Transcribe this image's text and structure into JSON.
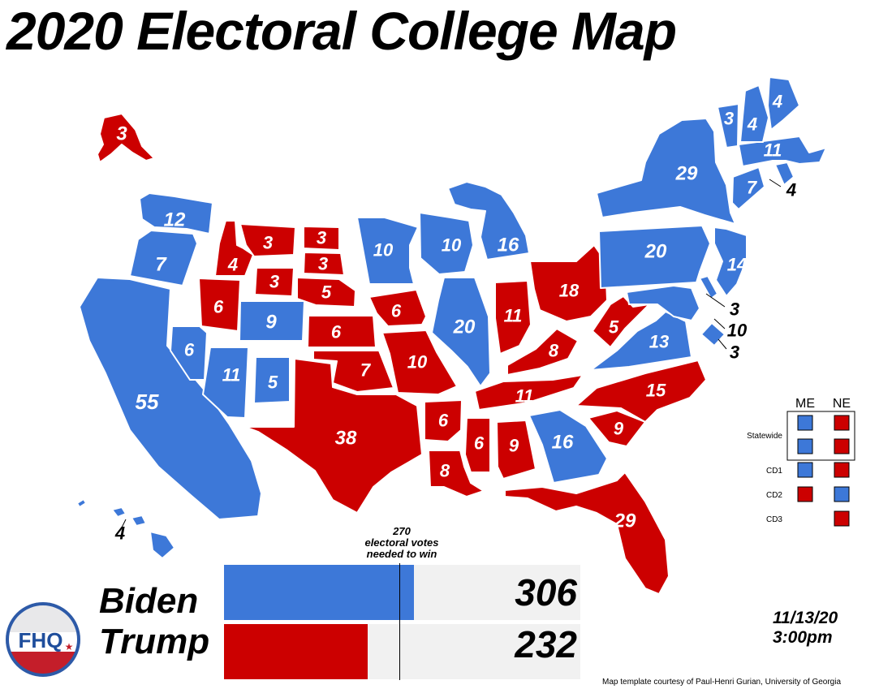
{
  "title": "2020 Electoral College Map",
  "colors": {
    "dem": "#3d78d8",
    "rep": "#cc0000"
  },
  "states": [
    {
      "id": "AK",
      "party": "rep",
      "ev": 3
    },
    {
      "id": "HI",
      "party": "dem",
      "ev": 4
    },
    {
      "id": "WA",
      "party": "dem",
      "ev": 12
    },
    {
      "id": "OR",
      "party": "dem",
      "ev": 7
    },
    {
      "id": "CA",
      "party": "dem",
      "ev": 55
    },
    {
      "id": "NV",
      "party": "dem",
      "ev": 6
    },
    {
      "id": "ID",
      "party": "rep",
      "ev": 4
    },
    {
      "id": "MT",
      "party": "rep",
      "ev": 3
    },
    {
      "id": "WY",
      "party": "rep",
      "ev": 3
    },
    {
      "id": "UT",
      "party": "rep",
      "ev": 6
    },
    {
      "id": "CO",
      "party": "dem",
      "ev": 9
    },
    {
      "id": "AZ",
      "party": "dem",
      "ev": 11
    },
    {
      "id": "NM",
      "party": "dem",
      "ev": 5
    },
    {
      "id": "ND",
      "party": "rep",
      "ev": 3
    },
    {
      "id": "SD",
      "party": "rep",
      "ev": 3
    },
    {
      "id": "NE",
      "party": "rep",
      "ev": 5
    },
    {
      "id": "KS",
      "party": "rep",
      "ev": 6
    },
    {
      "id": "OK",
      "party": "rep",
      "ev": 7
    },
    {
      "id": "TX",
      "party": "rep",
      "ev": 38
    },
    {
      "id": "MN",
      "party": "dem",
      "ev": 10
    },
    {
      "id": "IA",
      "party": "rep",
      "ev": 6
    },
    {
      "id": "MO",
      "party": "rep",
      "ev": 10
    },
    {
      "id": "AR",
      "party": "rep",
      "ev": 6
    },
    {
      "id": "LA",
      "party": "rep",
      "ev": 8
    },
    {
      "id": "WI",
      "party": "dem",
      "ev": 10
    },
    {
      "id": "IL",
      "party": "dem",
      "ev": 20
    },
    {
      "id": "MI",
      "party": "dem",
      "ev": 16
    },
    {
      "id": "IN",
      "party": "rep",
      "ev": 11
    },
    {
      "id": "OH",
      "party": "rep",
      "ev": 18
    },
    {
      "id": "KY",
      "party": "rep",
      "ev": 8
    },
    {
      "id": "TN",
      "party": "rep",
      "ev": 11
    },
    {
      "id": "MS",
      "party": "rep",
      "ev": 6
    },
    {
      "id": "AL",
      "party": "rep",
      "ev": 9
    },
    {
      "id": "GA",
      "party": "dem",
      "ev": 16
    },
    {
      "id": "FL",
      "party": "rep",
      "ev": 29
    },
    {
      "id": "SC",
      "party": "rep",
      "ev": 9
    },
    {
      "id": "NC",
      "party": "rep",
      "ev": 15
    },
    {
      "id": "VA",
      "party": "dem",
      "ev": 13
    },
    {
      "id": "WV",
      "party": "rep",
      "ev": 5
    },
    {
      "id": "PA",
      "party": "dem",
      "ev": 20
    },
    {
      "id": "NY",
      "party": "dem",
      "ev": 29
    },
    {
      "id": "NJ",
      "party": "dem",
      "ev": 14
    },
    {
      "id": "DE",
      "party": "dem",
      "ev": 3
    },
    {
      "id": "MD",
      "party": "dem",
      "ev": 10
    },
    {
      "id": "DC",
      "party": "dem",
      "ev": 3
    },
    {
      "id": "CT",
      "party": "dem",
      "ev": 7
    },
    {
      "id": "RI",
      "party": "dem",
      "ev": 4
    },
    {
      "id": "MA",
      "party": "dem",
      "ev": 11
    },
    {
      "id": "VT",
      "party": "dem",
      "ev": 3
    },
    {
      "id": "NH",
      "party": "dem",
      "ev": 4
    },
    {
      "id": "ME",
      "party": "dem",
      "ev": 4
    }
  ],
  "legend": {
    "headers": [
      "ME",
      "NE"
    ],
    "rows": [
      {
        "label": "Statewide",
        "me": "dem",
        "ne": "rep"
      },
      {
        "label": "",
        "me": "dem",
        "ne": "rep"
      },
      {
        "label": "CD1",
        "me": "dem",
        "ne": "rep"
      },
      {
        "label": "CD2",
        "me": "rep",
        "ne": "dem"
      },
      {
        "label": "CD3",
        "me": null,
        "ne": "rep"
      }
    ]
  },
  "threshold": {
    "value": 270,
    "total": 538,
    "label_lines": [
      "270",
      "electoral votes",
      "needed to win"
    ]
  },
  "candidates": [
    {
      "name": "Biden",
      "votes": 306,
      "party": "dem"
    },
    {
      "name": "Trump",
      "votes": 232,
      "party": "rep"
    }
  ],
  "timestamp": {
    "date": "11/13/20",
    "time": "3:00pm"
  },
  "logo_text": "FHQ",
  "credit": "Map template courtesy of Paul-Henri Gurian, University of Georgia"
}
